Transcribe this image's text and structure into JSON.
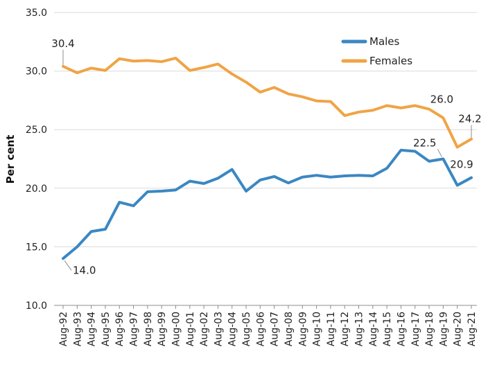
{
  "chart_data": {
    "type": "line",
    "title": "",
    "xlabel": "",
    "ylabel": "Per cent",
    "ylim": [
      10.0,
      35.0
    ],
    "yticks": [
      "10.0",
      "15.0",
      "20.0",
      "25.0",
      "30.0",
      "35.0"
    ],
    "grid": true,
    "legend_position": "top-right",
    "categories": [
      "Aug-92",
      "Aug-93",
      "Aug-94",
      "Aug-95",
      "Aug-96",
      "Aug-97",
      "Aug-98",
      "Aug-99",
      "Aug-00",
      "Aug-01",
      "Aug-02",
      "Aug-03",
      "Aug-04",
      "Aug-05",
      "Aug-06",
      "Aug-07",
      "Aug-08",
      "Aug-09",
      "Aug-10",
      "Aug-11",
      "Aug-12",
      "Aug-13",
      "Aug-14",
      "Aug-15",
      "Aug-16",
      "Aug-17",
      "Aug-18",
      "Aug-19",
      "Aug-20",
      "Aug-21"
    ],
    "series": [
      {
        "name": "Males",
        "color": "#3b87c2",
        "values": [
          14.0,
          15.0,
          16.3,
          16.5,
          18.8,
          18.5,
          19.7,
          19.75,
          19.85,
          20.6,
          20.4,
          20.85,
          21.6,
          19.75,
          20.7,
          21.0,
          20.45,
          20.95,
          21.1,
          20.95,
          21.05,
          21.1,
          21.05,
          21.7,
          23.25,
          23.15,
          22.3,
          22.5,
          20.25,
          20.9
        ],
        "labels": [
          {
            "index": 0,
            "text": "14.0"
          },
          {
            "index": 27,
            "text": "22.5"
          },
          {
            "index": 29,
            "text": "20.9"
          }
        ]
      },
      {
        "name": "Females",
        "color": "#f0a445",
        "values": [
          30.4,
          29.85,
          30.25,
          30.05,
          31.05,
          30.85,
          30.9,
          30.8,
          31.1,
          30.05,
          30.3,
          30.6,
          29.75,
          29.05,
          28.2,
          28.6,
          28.05,
          27.8,
          27.45,
          27.4,
          26.2,
          26.5,
          26.65,
          27.05,
          26.85,
          27.05,
          26.75,
          26.0,
          23.5,
          24.2
        ],
        "labels": [
          {
            "index": 0,
            "text": "30.4"
          },
          {
            "index": 27,
            "text": "26.0"
          },
          {
            "index": 29,
            "text": "24.2"
          }
        ]
      }
    ]
  }
}
